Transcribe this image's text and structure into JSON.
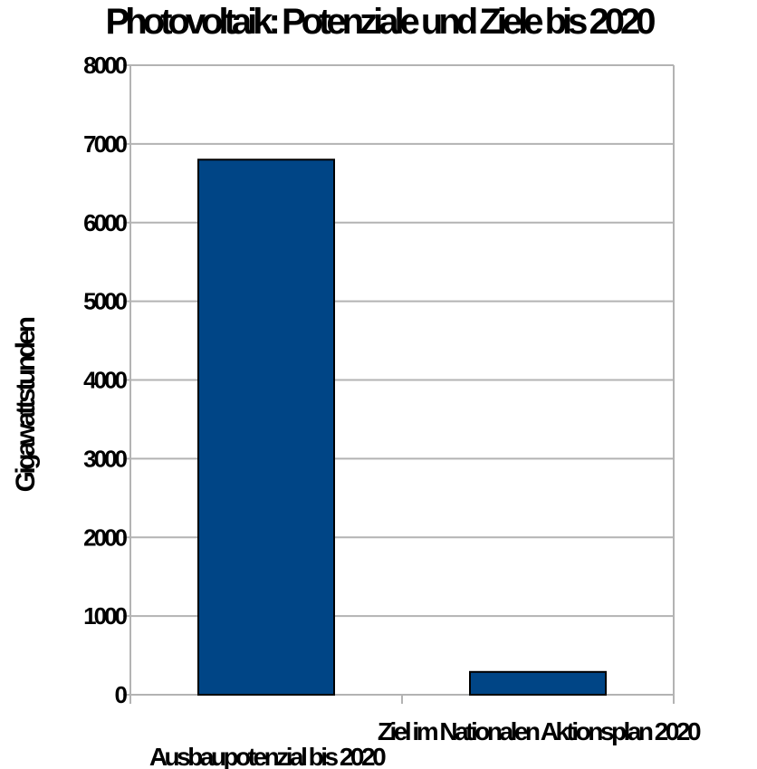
{
  "chart_data": {
    "type": "bar",
    "title": "Photovoltaik: Potenziale und Ziele bis 2020",
    "xlabel": "",
    "ylabel": "Gigawattstunden",
    "categories": [
      "Ausbaupotenzial bis 2020",
      "Ziel im Nationalen Aktionsplan 2020"
    ],
    "values": [
      6800,
      290
    ],
    "ylim": [
      0,
      8000
    ],
    "yticks": [
      0,
      1000,
      2000,
      3000,
      4000,
      5000,
      6000,
      7000,
      8000
    ],
    "grid": true,
    "legend": "none",
    "colors": {
      "bar": "#004586",
      "bar_edge": "#000000",
      "grid": "#b3b3b3"
    }
  }
}
